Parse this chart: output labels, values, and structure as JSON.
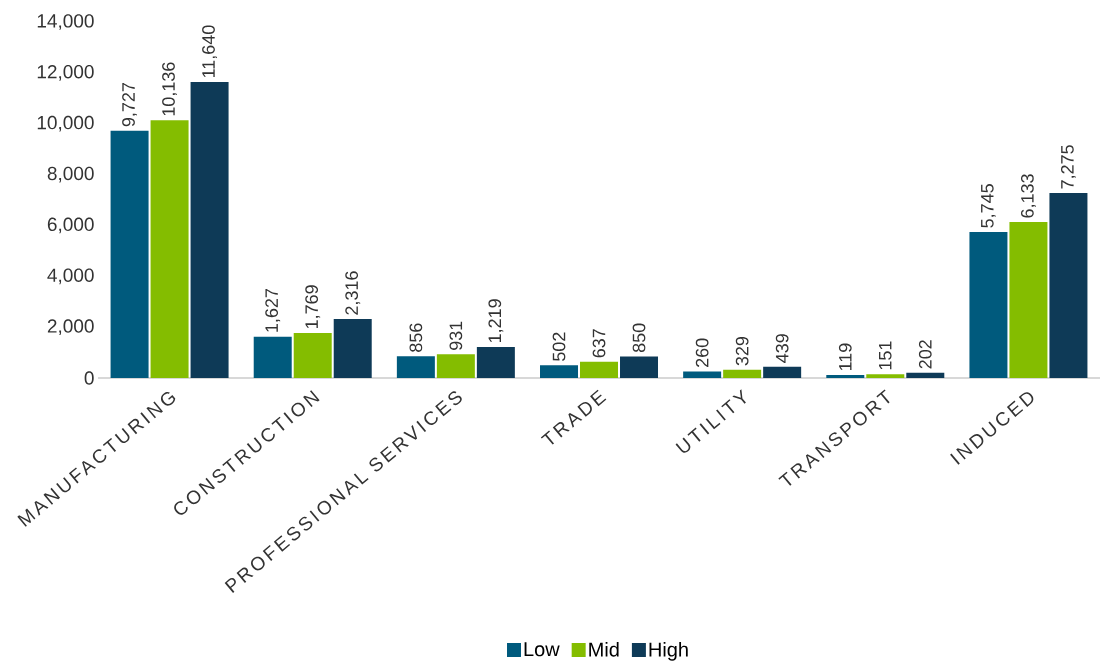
{
  "chart_data": {
    "type": "bar",
    "categories": [
      "MANUFACTURING",
      "CONSTRUCTION",
      "PROFESSIONAL SERVICES",
      "TRADE",
      "UTILITY",
      "TRANSPORT",
      "INDUCED"
    ],
    "series": [
      {
        "name": "Low",
        "color": "#005a7d",
        "values": [
          9727,
          1627,
          856,
          502,
          260,
          119,
          5745
        ],
        "value_labels": [
          "9,727",
          "1,627",
          "856",
          "502",
          "260",
          "119",
          "5,745"
        ]
      },
      {
        "name": "Mid",
        "color": "#84bd00",
        "values": [
          10136,
          1769,
          931,
          637,
          329,
          151,
          6133
        ],
        "value_labels": [
          "10,136",
          "1,769",
          "931",
          "637",
          "329",
          "151",
          "6,133"
        ]
      },
      {
        "name": "High",
        "color": "#0e3a57",
        "values": [
          11640,
          2316,
          1219,
          850,
          439,
          202,
          7275
        ],
        "value_labels": [
          "11,640",
          "2,316",
          "1,219",
          "850",
          "439",
          "202",
          "7,275"
        ]
      }
    ],
    "ylim": [
      0,
      14000
    ],
    "yticks": [
      {
        "value": 0,
        "label": "0"
      },
      {
        "value": 2000,
        "label": "2,000"
      },
      {
        "value": 4000,
        "label": "4,000"
      },
      {
        "value": 6000,
        "label": "6,000"
      },
      {
        "value": 8000,
        "label": "8,000"
      },
      {
        "value": 10000,
        "label": "10,000"
      },
      {
        "value": 12000,
        "label": "12,000"
      },
      {
        "value": 14000,
        "label": "14,000"
      }
    ],
    "grid": false,
    "legend": "bottom"
  }
}
